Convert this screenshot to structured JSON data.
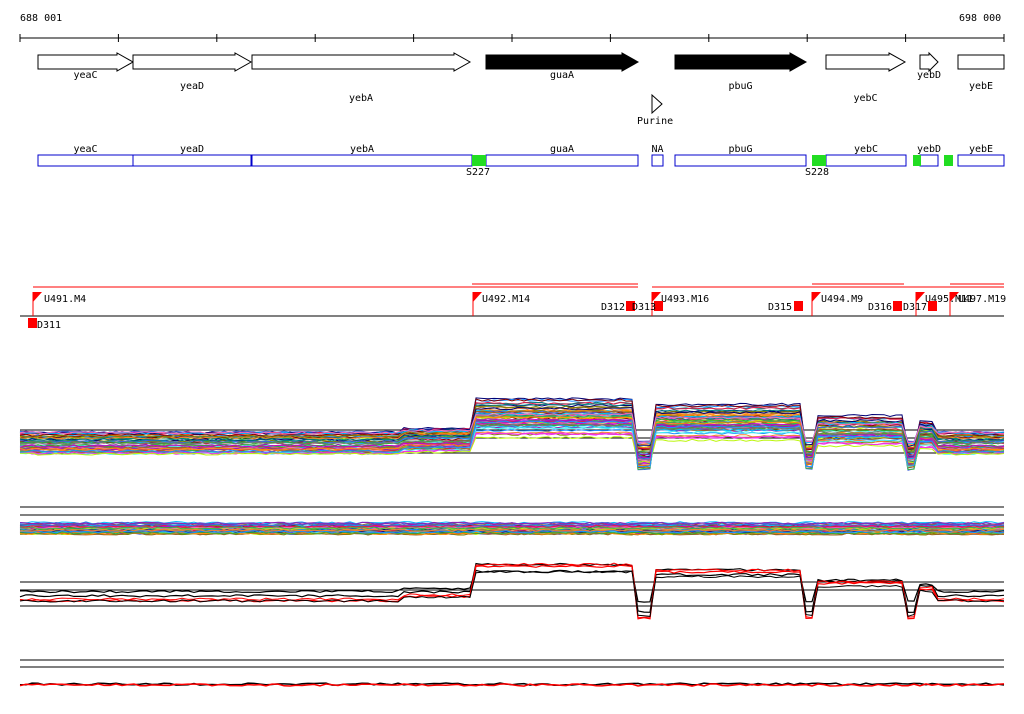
{
  "ruler": {
    "start_label": "688 001",
    "end_label": "698 000"
  },
  "genes": [
    {
      "name": "yeaC",
      "style": "open"
    },
    {
      "name": "yeaD",
      "style": "open"
    },
    {
      "name": "yebA",
      "style": "open"
    },
    {
      "name": "guaA",
      "style": "filled"
    },
    {
      "name": "pbuG",
      "style": "filled"
    },
    {
      "name": "yebC",
      "style": "open"
    },
    {
      "name": "yebD",
      "style": "open"
    },
    {
      "name": "yebE",
      "style": "open"
    }
  ],
  "riboswitch": {
    "name": "Purine"
  },
  "segments": [
    "yeaC",
    "yeaD",
    "yebA",
    "guaA",
    "NA",
    "pbuG",
    "yebC",
    "yebD",
    "yebE"
  ],
  "sites": [
    "S227",
    "S228"
  ],
  "transcripts": [
    "U491.M4",
    "U492.M14",
    "U493.M16",
    "U494.M9",
    "U495.M11",
    "U497.M19"
  ],
  "downshifts": [
    "D311",
    "D312",
    "D313",
    "D315",
    "D316",
    "D317"
  ],
  "panels": [
    "expression-profiles-all",
    "expression-profiles-variable",
    "expression-profiles-selected",
    "expression-profiles-ratio"
  ],
  "colors": {
    "gene_fill": "#000000",
    "segment_border": "#0000cc",
    "site_marker": "#22dd22",
    "transcript_marker": "#ff0000",
    "selected_profile": "#ff0000"
  }
}
